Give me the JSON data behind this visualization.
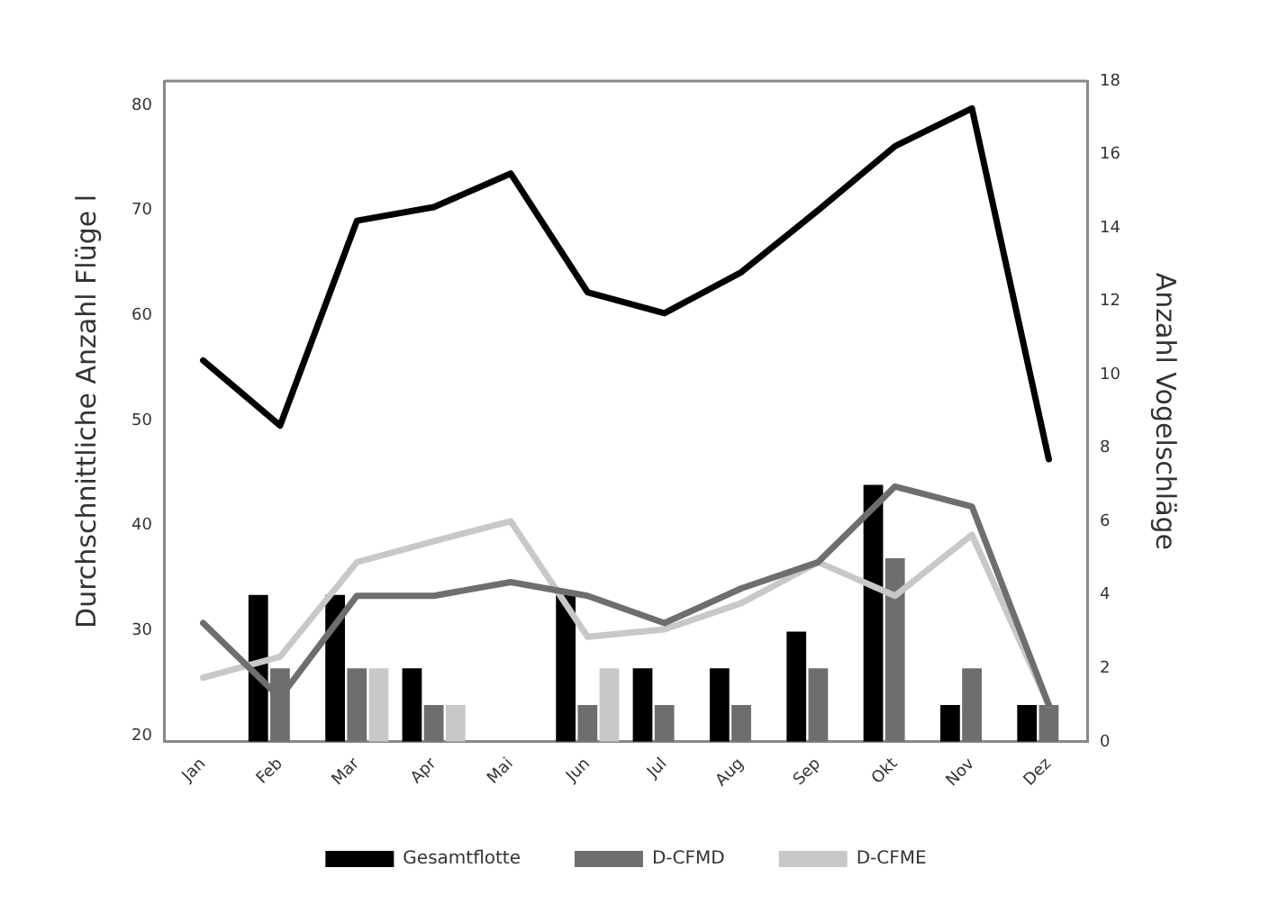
{
  "chart_data": {
    "type": "bar",
    "xlabel": null,
    "ylabel": "Durchschnittliche Anzahl Flüge l",
    "y2label": "Anzahl Vogelschläge",
    "categories": [
      "Jan",
      "Feb",
      "Mar",
      "Apr",
      "Mai",
      "Jun",
      "Jul",
      "Aug",
      "Sep",
      "Okt",
      "Nov",
      "Dez"
    ],
    "series": [
      {
        "type": "line",
        "color": "#000000",
        "values": [
          55.7,
          49.5,
          69.0,
          70.3,
          73.5,
          62.2,
          60.2,
          64.1,
          70.0,
          76.1,
          79.7,
          46.3
        ]
      },
      {
        "type": "line",
        "color": "#6e6e6e",
        "values": [
          30.7,
          23.6,
          33.3,
          33.3,
          34.6,
          33.3,
          30.7,
          34.0,
          36.5,
          43.7,
          41.8,
          22.9
        ]
      },
      {
        "type": "line",
        "color": "#c8c8c8",
        "values": [
          25.5,
          27.5,
          36.5,
          38.5,
          40.4,
          29.4,
          30.1,
          32.6,
          36.5,
          33.3,
          39.1,
          22.9
        ]
      },
      {
        "axis": "y2",
        "name": "Gesamtflotte",
        "color": "#000000",
        "values": [
          0,
          4,
          4,
          2,
          0,
          4,
          2,
          2,
          3,
          7,
          1,
          1
        ]
      },
      {
        "axis": "y2",
        "name": "D-CFMD",
        "color": "#6e6e6e",
        "values": [
          0,
          2,
          2,
          1,
          0,
          1,
          1,
          1,
          2,
          5,
          2,
          1
        ]
      },
      {
        "axis": "y2",
        "name": "D-CFME",
        "color": "#c8c8c8",
        "values": [
          0,
          0,
          2,
          1,
          0,
          2,
          0,
          0,
          0,
          0,
          0,
          0
        ]
      }
    ],
    "ylim": [
      19.4,
      82.3
    ],
    "yticks": [
      20,
      30,
      40,
      50,
      60,
      70,
      80
    ],
    "y2lim": [
      0,
      18
    ],
    "y2ticks": [
      0,
      2,
      4,
      6,
      8,
      10,
      12,
      14,
      16,
      18
    ],
    "grid": false,
    "legend": "bottom",
    "marker": "none",
    "line_style": "solid"
  }
}
